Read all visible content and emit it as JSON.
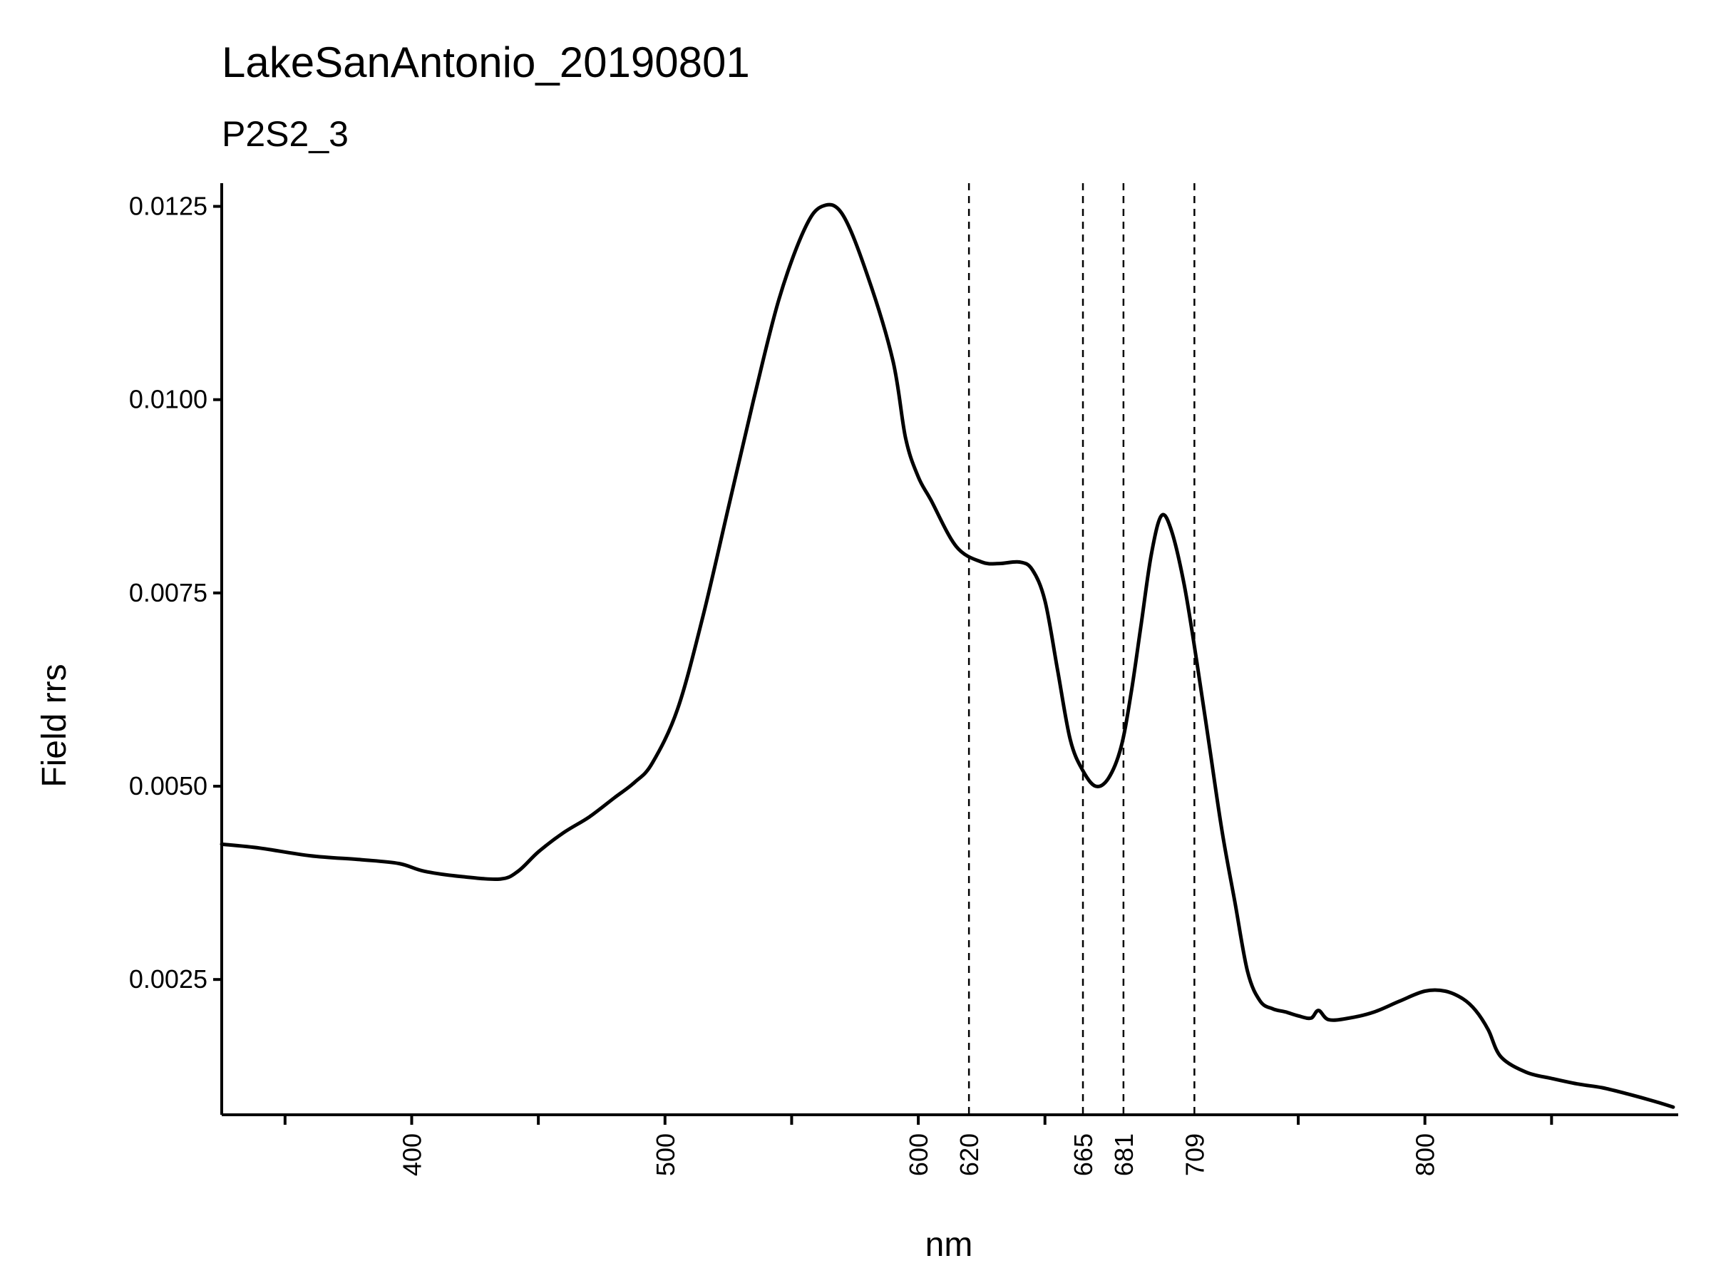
{
  "chart_data": {
    "type": "line",
    "title": "LakeSanAntonio_20190801",
    "subtitle": "P2S2_3",
    "xlabel": "nm",
    "ylabel": "Field rrs",
    "xlim": [
      325,
      900
    ],
    "ylim": [
      0.00075,
      0.0128
    ],
    "grid": false,
    "legend": "none",
    "x_ticks_major": [
      400,
      500,
      600,
      800
    ],
    "x_ticks_minor": [
      350,
      450,
      550,
      650,
      750,
      850
    ],
    "vlines": [
      620,
      665,
      681,
      709
    ],
    "y_ticks": [
      {
        "value": 0.0025,
        "label": "0.0025"
      },
      {
        "value": 0.005,
        "label": "0.0050"
      },
      {
        "value": 0.0075,
        "label": "0.0075"
      },
      {
        "value": 0.01,
        "label": "0.0100"
      },
      {
        "value": 0.0125,
        "label": "0.0125"
      }
    ],
    "series": [
      {
        "color": "#000000",
        "x": [
          325,
          340,
          360,
          380,
          395,
          405,
          420,
          435,
          442,
          450,
          460,
          470,
          480,
          488,
          495,
          505,
          515,
          525,
          535,
          545,
          555,
          562,
          570,
          580,
          590,
          595,
          600,
          605,
          615,
          625,
          632,
          640,
          645,
          650,
          655,
          660,
          665,
          670,
          675,
          680,
          684,
          688,
          692,
          696,
          700,
          705,
          710,
          715,
          720,
          725,
          730,
          735,
          740,
          745,
          750,
          755,
          758,
          762,
          770,
          780,
          790,
          800,
          808,
          815,
          820,
          825,
          830,
          840,
          850,
          860,
          870,
          880,
          890,
          898
        ],
        "y": [
          0.00425,
          0.0042,
          0.0041,
          0.00405,
          0.004,
          0.0039,
          0.00383,
          0.0038,
          0.0039,
          0.00415,
          0.0044,
          0.0046,
          0.00485,
          0.00505,
          0.0053,
          0.006,
          0.0072,
          0.0086,
          0.01,
          0.0113,
          0.0122,
          0.0125,
          0.0124,
          0.0116,
          0.0105,
          0.0095,
          0.009,
          0.0087,
          0.0081,
          0.0079,
          0.00788,
          0.0079,
          0.0078,
          0.0074,
          0.0065,
          0.0056,
          0.0052,
          0.005,
          0.0051,
          0.0055,
          0.0062,
          0.0071,
          0.008,
          0.0085,
          0.0083,
          0.0076,
          0.0066,
          0.0055,
          0.0044,
          0.0035,
          0.0026,
          0.00222,
          0.00212,
          0.00208,
          0.00203,
          0.002,
          0.0021,
          0.00198,
          0.002,
          0.00208,
          0.00222,
          0.00235,
          0.00235,
          0.00225,
          0.0021,
          0.00185,
          0.0015,
          0.0013,
          0.00122,
          0.00115,
          0.0011,
          0.00102,
          0.00093,
          0.00085
        ]
      }
    ]
  }
}
